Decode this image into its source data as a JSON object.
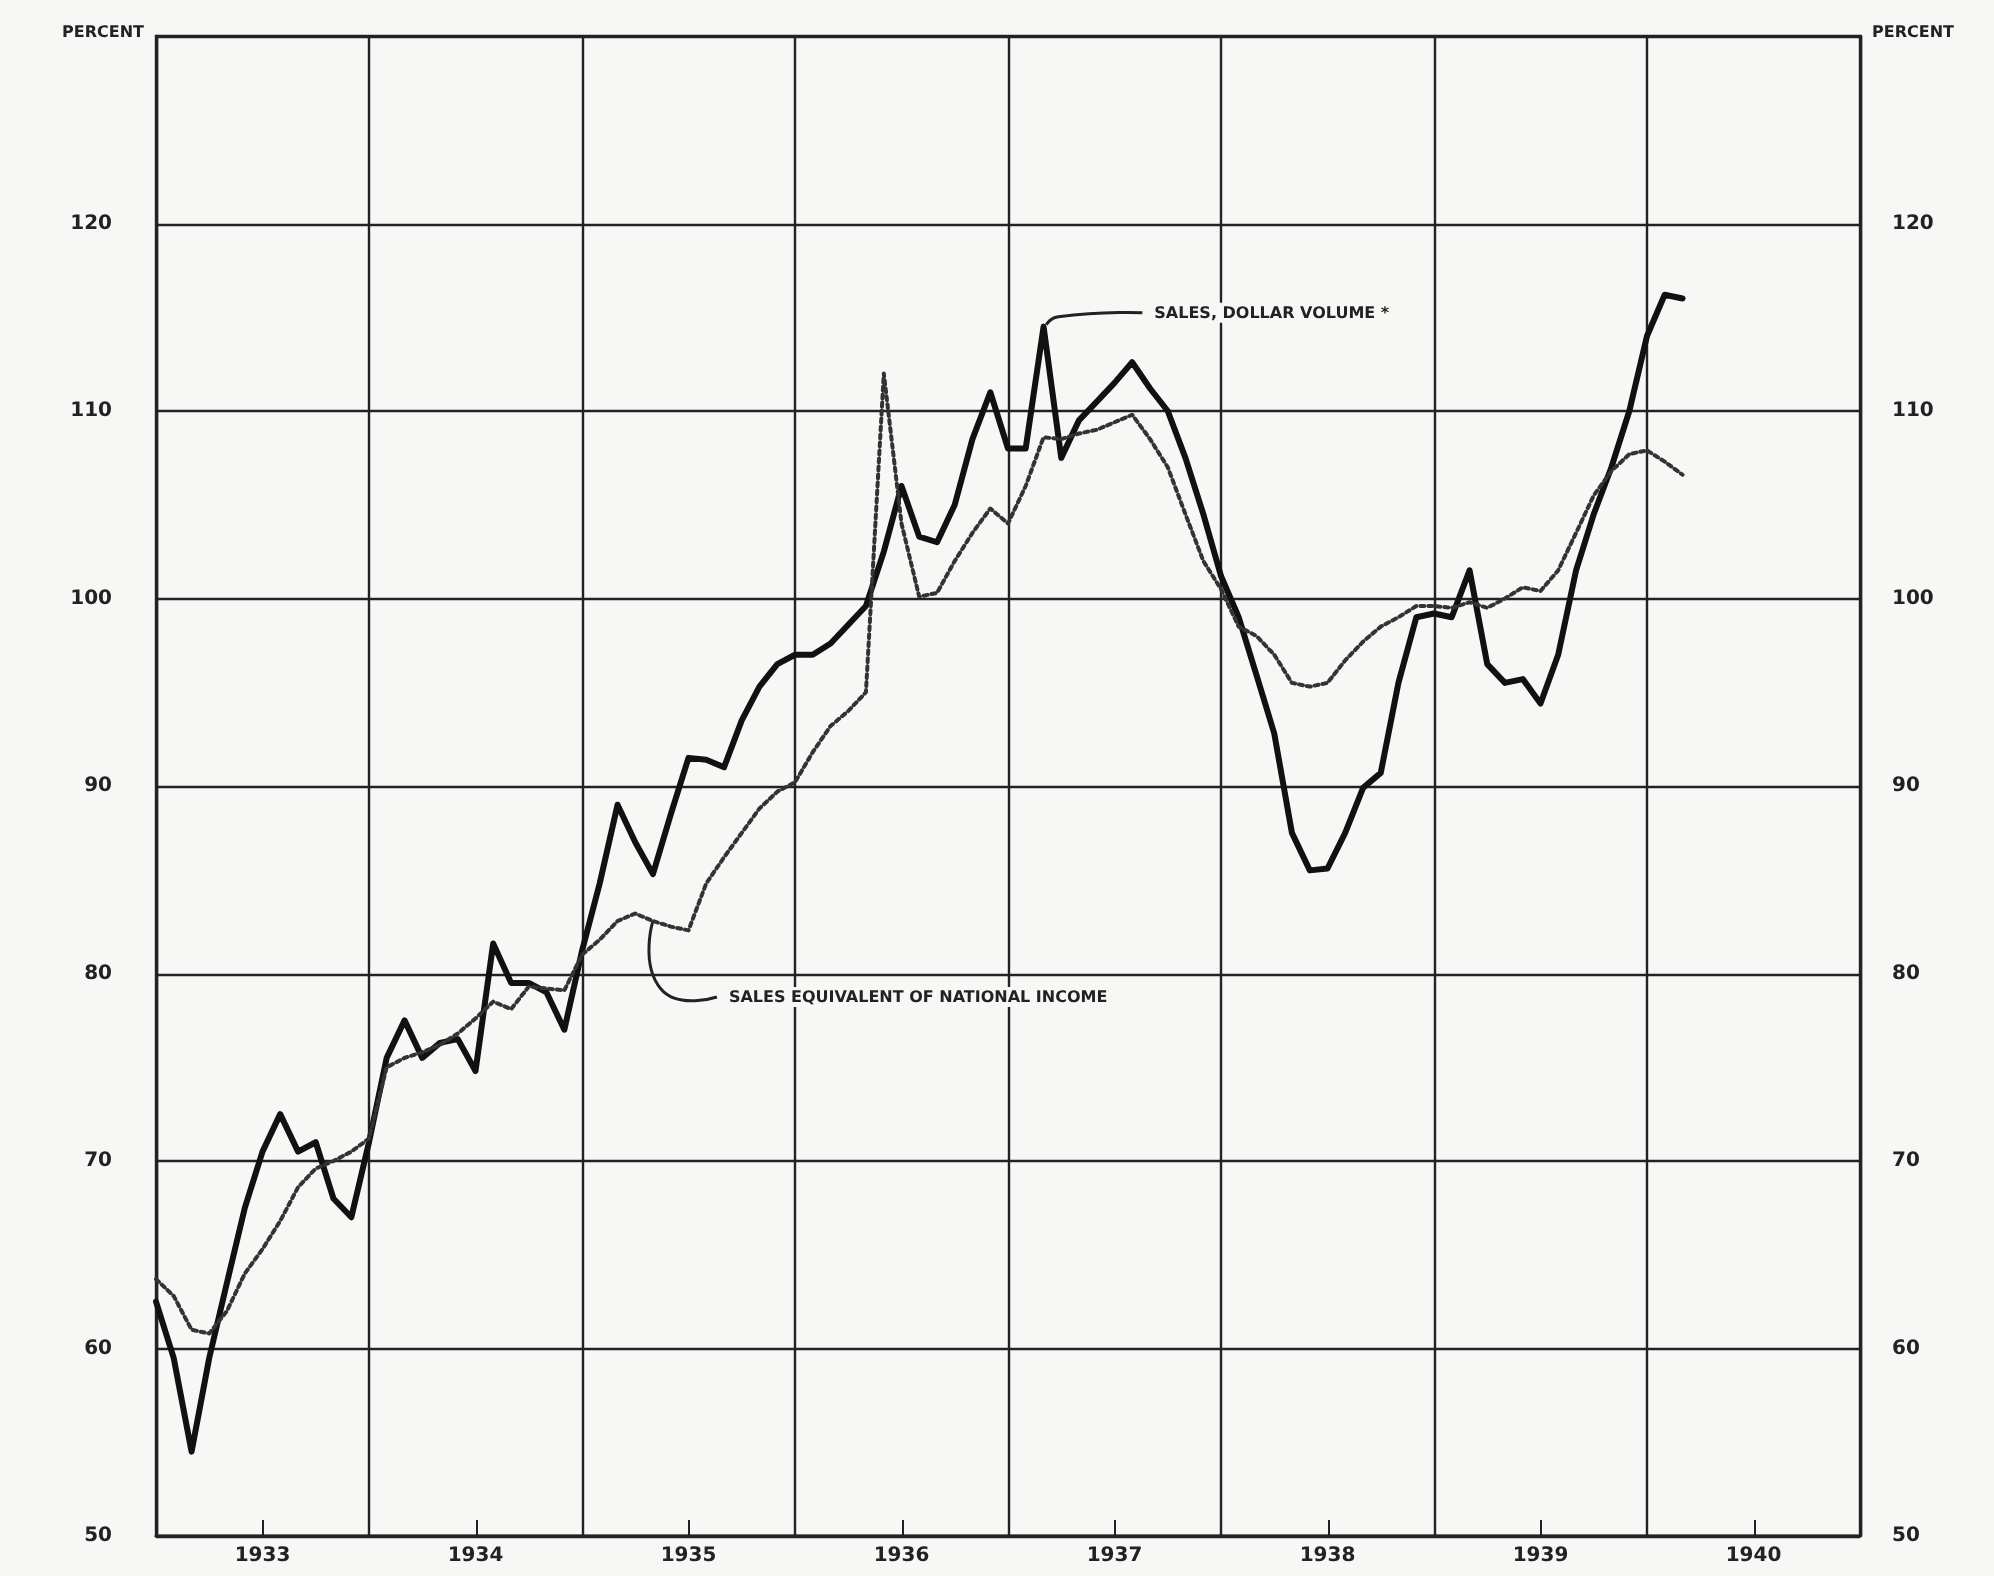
{
  "chart_data": {
    "type": "line",
    "x": [
      1933,
      1933.083,
      1933.167,
      1933.25,
      1933.333,
      1933.417,
      1933.5,
      1933.583,
      1933.667,
      1933.75,
      1933.833,
      1933.917,
      1934,
      1934.083,
      1934.167,
      1934.25,
      1934.333,
      1934.417,
      1934.5,
      1934.583,
      1934.667,
      1934.75,
      1934.833,
      1934.917,
      1935,
      1935.083,
      1935.167,
      1935.25,
      1935.333,
      1935.417,
      1935.5,
      1935.583,
      1935.667,
      1935.75,
      1935.833,
      1935.917,
      1936,
      1936.083,
      1936.167,
      1936.25,
      1936.333,
      1936.417,
      1936.5,
      1936.583,
      1936.667,
      1936.75,
      1936.833,
      1936.917,
      1937,
      1937.083,
      1937.167,
      1937.25,
      1937.333,
      1937.417,
      1937.5,
      1937.583,
      1937.667,
      1937.75,
      1937.833,
      1937.917,
      1938,
      1938.083,
      1938.167,
      1938.25,
      1938.333,
      1938.417,
      1938.5,
      1938.583,
      1938.667,
      1938.75,
      1938.833,
      1938.917,
      1939,
      1939.083,
      1939.167,
      1939.25,
      1939.333,
      1939.417,
      1939.5,
      1939.583,
      1939.667,
      1939.75,
      1939.833,
      1939.917,
      1940,
      1940.083,
      1940.167
    ],
    "series": [
      {
        "color": "#111111",
        "line_style": "solid",
        "values": [
          62.5,
          59.5,
          54.5,
          59.5,
          63.5,
          67.5,
          70.5,
          72.5,
          70.5,
          71,
          68,
          67,
          71,
          75.5,
          77.5,
          75.5,
          76.3,
          76.5,
          74.8,
          81.6,
          79.5,
          79.5,
          79,
          77,
          81.2,
          84.8,
          89,
          87,
          85.3,
          88.5,
          91.5,
          91.4,
          91,
          93.5,
          95.3,
          96.5,
          97,
          97,
          97.6,
          98.6,
          99.6,
          102.5,
          106,
          103.3,
          103,
          105,
          108.5,
          111,
          108,
          108,
          114.5,
          107.5,
          109.5,
          110.5,
          111.5,
          112.6,
          111.2,
          110,
          107.5,
          104.5,
          101.2,
          99,
          95.9,
          92.8,
          87.5,
          85.5,
          85.6,
          87.5,
          89.9,
          90.7,
          95.5,
          99,
          99.2,
          99,
          101.5,
          96.5,
          95.5,
          95.7,
          94.4,
          97,
          101.5,
          104.5,
          107,
          110,
          114,
          116.2,
          116
        ]
      },
      {
        "color": "#333333",
        "line_style": "dotted",
        "values": [
          63.7,
          62.8,
          61,
          60.8,
          62,
          64,
          65.3,
          66.8,
          68.6,
          69.6,
          70,
          70.5,
          71.2,
          75,
          75.5,
          75.8,
          76.2,
          76.8,
          77.6,
          78.5,
          78.1,
          79.3,
          79.2,
          79.1,
          81,
          81.8,
          82.8,
          83.2,
          82.8,
          82.5,
          82.3,
          84.8,
          86.2,
          87.5,
          88.8,
          89.7,
          90.2,
          91.8,
          93.2,
          94,
          95,
          112,
          104,
          100.1,
          100.3,
          102,
          103.5,
          104.8,
          104,
          106,
          108.6,
          108.5,
          108.8,
          109,
          109.4,
          109.8,
          108.5,
          107,
          104.5,
          102,
          100.5,
          98.5,
          98,
          97,
          95.5,
          95.3,
          95.5,
          96.7,
          97.7,
          98.5,
          99,
          99.6,
          99.6,
          99.5,
          99.8,
          99.5,
          100,
          100.6,
          100.4,
          101.5,
          103.5,
          105.5,
          106.8,
          107.7,
          107.9,
          107.3,
          106.6
        ]
      }
    ],
    "ylabel": "PERCENT",
    "y2label": "PERCENT",
    "xlim": [
      1933,
      1941
    ],
    "xticks": [
      {
        "value": 1933.5,
        "label": "1933"
      },
      {
        "value": 1934,
        "label": null
      },
      {
        "value": 1934.5,
        "label": "1934"
      },
      {
        "value": 1935,
        "label": null
      },
      {
        "value": 1935.5,
        "label": "1935"
      },
      {
        "value": 1936,
        "label": null
      },
      {
        "value": 1936.5,
        "label": "1936"
      },
      {
        "value": 1937,
        "label": null
      },
      {
        "value": 1937.5,
        "label": "1937"
      },
      {
        "value": 1938,
        "label": null
      },
      {
        "value": 1938.5,
        "label": "1938"
      },
      {
        "value": 1939,
        "label": null
      },
      {
        "value": 1939.5,
        "label": "1939"
      },
      {
        "value": 1940,
        "label": null
      },
      {
        "value": 1940.5,
        "label": "1940"
      }
    ],
    "ylim": [
      50,
      130
    ],
    "yticks": [
      50,
      60,
      70,
      80,
      90,
      100,
      110,
      120
    ],
    "y2lim": [
      50,
      130
    ],
    "y2ticks": [
      50,
      60,
      70,
      80,
      90,
      100,
      110,
      120
    ],
    "grid": true,
    "marker": "none",
    "annotations": [
      {
        "text": "SALES, DOLLAR VOLUME *",
        "x": 1937.18,
        "y": 114.6
      },
      {
        "text": "SALES EQUIVALENT OF NATIONAL INCOME",
        "x": 1935.333,
        "y": 82.8
      }
    ]
  }
}
